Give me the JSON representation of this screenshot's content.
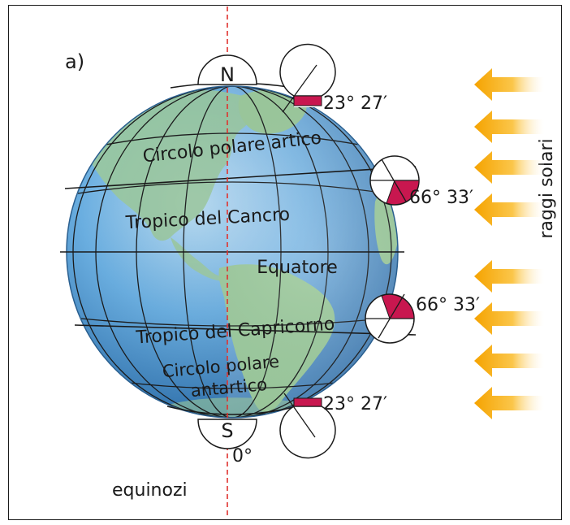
{
  "figure_label": "a)",
  "poles": {
    "north": "N",
    "south": "S"
  },
  "circles": {
    "arctic": "Circolo polare artico",
    "cancer": "Tropico del Cancro",
    "equator": "Equatore",
    "capricorn": "Tropico del Capricorno",
    "antarctic_line1": "Circolo polare",
    "antarctic_line2": "antartico"
  },
  "angles": {
    "top": "23° 27′",
    "upper": "66° 33′",
    "lower": "66° 33′",
    "bottom": "23° 27′",
    "meridian": "0°"
  },
  "sun_rays_label": "raggi solari",
  "season_label": "equinozi",
  "sun_ray_count": 8,
  "colors": {
    "ocean": "#3f84c4",
    "land": "#9cc99a",
    "angle_fill": "#c8174f",
    "ray": "#f7a81b",
    "axis": "#e0322e"
  }
}
